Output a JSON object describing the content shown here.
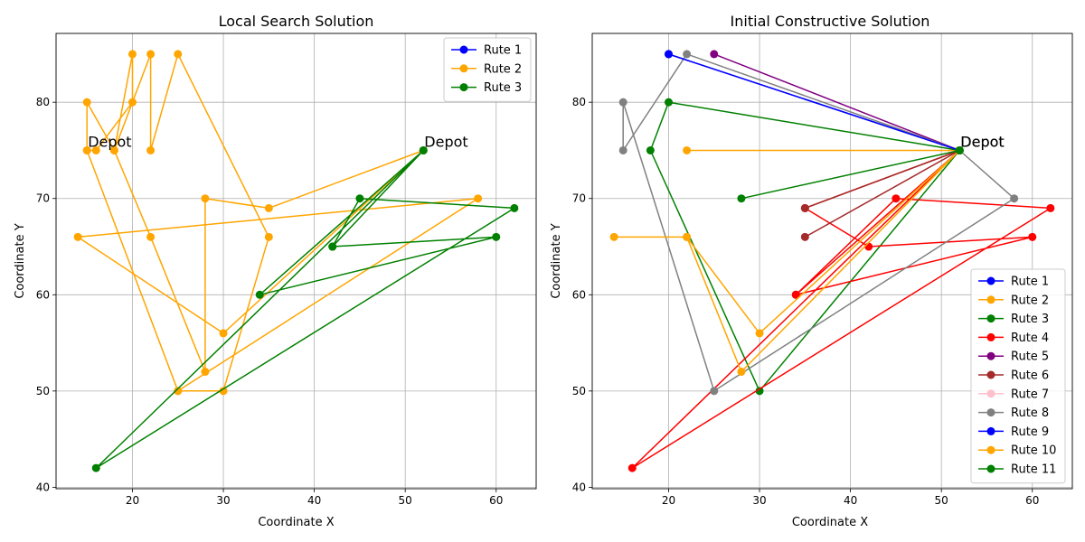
{
  "colors": {
    "Rute 1": "#0000ff",
    "Rute 2": "#ffa500",
    "Rute 3": "#008000",
    "Rute 4": "#ff0000",
    "Rute 5": "#800080",
    "Rute 6": "#a52a2a",
    "Rute 7": "#ffc0cb",
    "Rute 8": "#808080",
    "Rute 9": "#0000ff",
    "Rute 10": "#ffa500",
    "Rute 11": "#008000"
  },
  "chart_data": [
    {
      "type": "line",
      "title": "Local Search Solution",
      "xlabel": "Coordinate X",
      "ylabel": "Coordinate Y",
      "xlim": [
        11.6,
        64.4
      ],
      "ylim": [
        39.85,
        87.15
      ],
      "xticks": [
        20,
        30,
        40,
        50,
        60
      ],
      "yticks": [
        40,
        50,
        60,
        70,
        80
      ],
      "grid": true,
      "legend": "top-right",
      "annotations": [
        {
          "text": "Depot",
          "x": 15,
          "y": 75
        },
        {
          "text": "Depot",
          "x": 52,
          "y": 75
        }
      ],
      "series": [
        {
          "name": "Rute 1",
          "points": []
        },
        {
          "name": "Rute 2",
          "points": [
            [
              15,
              75
            ],
            [
              15,
              80
            ],
            [
              18,
              75
            ],
            [
              22,
              66
            ],
            [
              28,
              52
            ],
            [
              28,
              70
            ],
            [
              35,
              69
            ],
            [
              52,
              75
            ],
            [
              30,
              56
            ],
            [
              14,
              66
            ],
            [
              58,
              70
            ],
            [
              25,
              50
            ],
            [
              15,
              75
            ],
            [
              16,
              75
            ],
            [
              20,
              80
            ],
            [
              20,
              85
            ],
            [
              18,
              75
            ],
            [
              22,
              85
            ],
            [
              22,
              75
            ],
            [
              25,
              85
            ],
            [
              35,
              66
            ],
            [
              30,
              50
            ],
            [
              25,
              50
            ]
          ]
        },
        {
          "name": "Rute 3",
          "points": [
            [
              52,
              75
            ],
            [
              34,
              60
            ],
            [
              60,
              66
            ],
            [
              42,
              65
            ],
            [
              52,
              75
            ],
            [
              16,
              42
            ],
            [
              62,
              69
            ],
            [
              45,
              70
            ],
            [
              42,
              65
            ]
          ]
        }
      ]
    },
    {
      "type": "line",
      "title": "Initial Constructive Solution",
      "xlabel": "Coordinate X",
      "ylabel": "Coordinate Y",
      "xlim": [
        11.6,
        64.4
      ],
      "ylim": [
        39.85,
        87.15
      ],
      "xticks": [
        20,
        30,
        40,
        50,
        60
      ],
      "yticks": [
        40,
        50,
        60,
        70,
        80
      ],
      "grid": true,
      "legend": "lower-right",
      "annotations": [
        {
          "text": "Depot",
          "x": 52,
          "y": 75
        },
        {
          "text": "Depot",
          "x": 52,
          "y": 75
        }
      ],
      "series": [
        {
          "name": "Rute 1",
          "points": [
            [
              52,
              75
            ],
            [
              20,
              85
            ],
            [
              52,
              75
            ]
          ]
        },
        {
          "name": "Rute 2",
          "points": [
            [
              52,
              75
            ],
            [
              22,
              75
            ],
            [
              52,
              75
            ]
          ]
        },
        {
          "name": "Rute 3",
          "points": [
            [
              52,
              75
            ],
            [
              20,
              80
            ],
            [
              18,
              75
            ],
            [
              30,
              50
            ],
            [
              52,
              75
            ]
          ]
        },
        {
          "name": "Rute 4",
          "points": [
            [
              52,
              75
            ],
            [
              34,
              60
            ],
            [
              60,
              66
            ],
            [
              42,
              65
            ],
            [
              35,
              69
            ],
            [
              52,
              75
            ],
            [
              16,
              42
            ],
            [
              62,
              69
            ],
            [
              45,
              70
            ],
            [
              34,
              60
            ]
          ]
        },
        {
          "name": "Rute 5",
          "points": [
            [
              52,
              75
            ],
            [
              25,
              85
            ],
            [
              52,
              75
            ]
          ]
        },
        {
          "name": "Rute 6",
          "points": [
            [
              52,
              75
            ],
            [
              35,
              69
            ],
            [
              52,
              75
            ],
            [
              35,
              66
            ],
            [
              52,
              75
            ]
          ]
        },
        {
          "name": "Rute 7",
          "points": []
        },
        {
          "name": "Rute 8",
          "points": [
            [
              52,
              75
            ],
            [
              22,
              85
            ],
            [
              15,
              75
            ],
            [
              15,
              80
            ],
            [
              25,
              50
            ],
            [
              58,
              70
            ],
            [
              52,
              75
            ]
          ]
        },
        {
          "name": "Rute 9",
          "points": [
            [
              52,
              75
            ],
            [
              20,
              85
            ],
            [
              52,
              75
            ]
          ]
        },
        {
          "name": "Rute 10",
          "points": [
            [
              52,
              75
            ],
            [
              30,
              56
            ],
            [
              22,
              66
            ],
            [
              14,
              66
            ],
            [
              22,
              66
            ],
            [
              28,
              52
            ],
            [
              52,
              75
            ]
          ]
        },
        {
          "name": "Rute 11",
          "points": [
            [
              52,
              75
            ],
            [
              28,
              70
            ],
            [
              52,
              75
            ]
          ]
        }
      ]
    }
  ]
}
